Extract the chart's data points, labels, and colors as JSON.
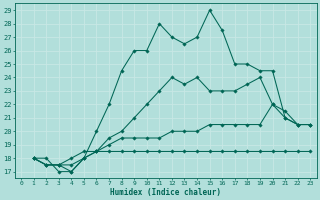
{
  "xlabel": "Humidex (Indice chaleur)",
  "background_color": "#b2dfdb",
  "grid_color": "#c8e8e5",
  "line_color": "#006655",
  "xlim": [
    -0.5,
    23.5
  ],
  "ylim": [
    16.5,
    29.5
  ],
  "yticks": [
    17,
    18,
    19,
    20,
    21,
    22,
    23,
    24,
    25,
    26,
    27,
    28,
    29
  ],
  "xticks": [
    0,
    1,
    2,
    3,
    4,
    5,
    6,
    7,
    8,
    9,
    10,
    11,
    12,
    13,
    14,
    15,
    16,
    17,
    18,
    19,
    20,
    21,
    22,
    23
  ],
  "series_x": [
    [
      1,
      2,
      3,
      4,
      5,
      6,
      7,
      8,
      9,
      10,
      11,
      12,
      13,
      14,
      15,
      16,
      17,
      18,
      19,
      20,
      21,
      22,
      23
    ],
    [
      1,
      2,
      3,
      4,
      5,
      6,
      7,
      8,
      9,
      10,
      11,
      12,
      13,
      14,
      15,
      16,
      17,
      18,
      19,
      20,
      21,
      22,
      23
    ],
    [
      1,
      2,
      3,
      4,
      5,
      6,
      7,
      8,
      9,
      10,
      11,
      12,
      13,
      14,
      15,
      16,
      17,
      18,
      19,
      20,
      21,
      22,
      23
    ],
    [
      1,
      2,
      3,
      4,
      5,
      6,
      7,
      8,
      9,
      10,
      11,
      12,
      13,
      14,
      15,
      16,
      17,
      18,
      19,
      20,
      21,
      22,
      23
    ]
  ],
  "series_y": [
    [
      18,
      18,
      17,
      17,
      18,
      20,
      22,
      24.5,
      26,
      26,
      28,
      27,
      26.5,
      27,
      29,
      27.5,
      25,
      25,
      24.5,
      24.5,
      21,
      20.5,
      20.5
    ],
    [
      18,
      17.5,
      17.5,
      17,
      18,
      18.5,
      19.5,
      20,
      21,
      22,
      23,
      24,
      23.5,
      24,
      23,
      23,
      23,
      23.5,
      24,
      22,
      21,
      20.5,
      20.5
    ],
    [
      18,
      17.5,
      17.5,
      17.5,
      18,
      18.5,
      19,
      19.5,
      19.5,
      19.5,
      19.5,
      20,
      20,
      20,
      20.5,
      20.5,
      20.5,
      20.5,
      20.5,
      22,
      21.5,
      20.5,
      20.5
    ],
    [
      18,
      17.5,
      17.5,
      18,
      18.5,
      18.5,
      18.5,
      18.5,
      18.5,
      18.5,
      18.5,
      18.5,
      18.5,
      18.5,
      18.5,
      18.5,
      18.5,
      18.5,
      18.5,
      18.5,
      18.5,
      18.5,
      18.5
    ]
  ]
}
